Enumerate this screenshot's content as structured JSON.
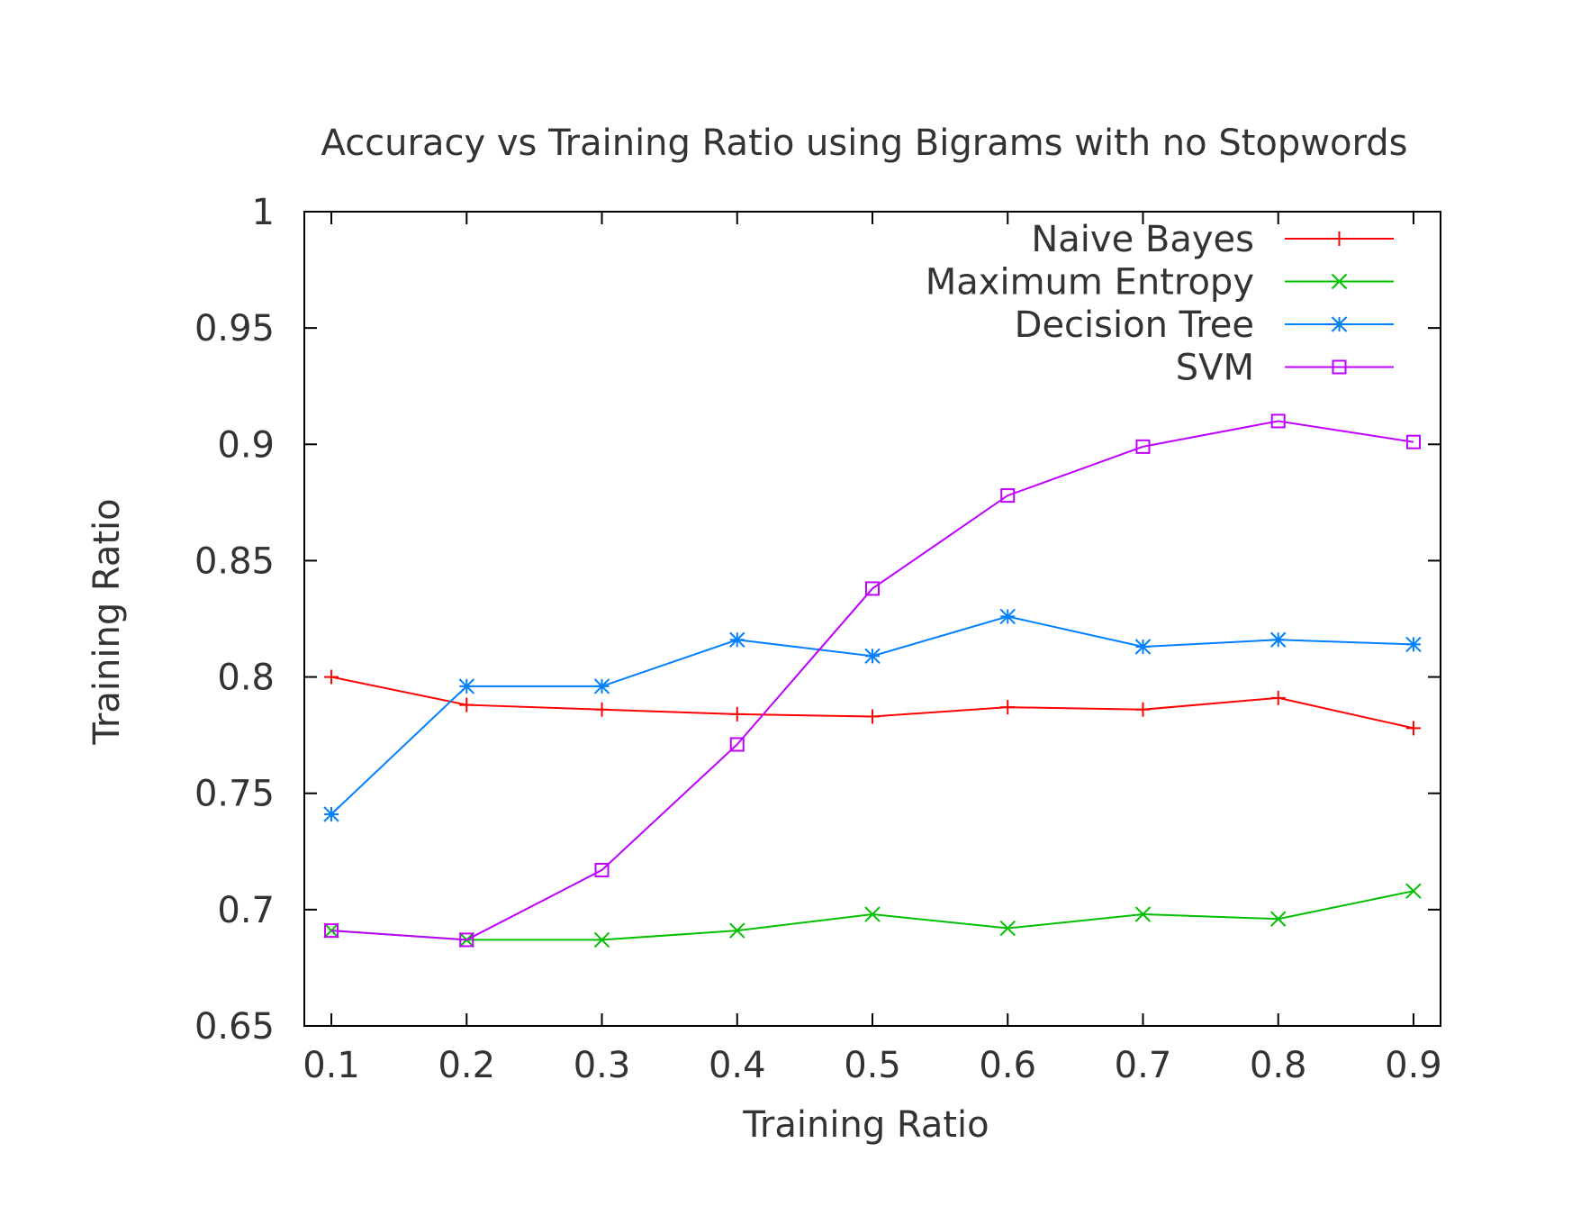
{
  "chart_data": {
    "type": "line",
    "title": "Accuracy vs Training Ratio using Bigrams with no Stopwords",
    "xlabel": "Training Ratio",
    "ylabel": "Training Ratio",
    "x": [
      0.1,
      0.2,
      0.3,
      0.4,
      0.5,
      0.6,
      0.7,
      0.8,
      0.9
    ],
    "xlim": [
      0.08,
      0.92
    ],
    "ylim": [
      0.65,
      1
    ],
    "xticks": [
      "0.1",
      "0.2",
      "0.3",
      "0.4",
      "0.5",
      "0.6",
      "0.7",
      "0.8",
      "0.9"
    ],
    "yticks": [
      "0.65",
      "0.7",
      "0.75",
      "0.8",
      "0.85",
      "0.9",
      "0.95",
      "1"
    ],
    "grid": false,
    "legend_position": "top-right",
    "series": [
      {
        "name": "Naive Bayes",
        "color": "#ff0000",
        "marker": "plus",
        "values": [
          0.8,
          0.788,
          0.786,
          0.784,
          0.783,
          0.787,
          0.786,
          0.791,
          0.778
        ]
      },
      {
        "name": "Maximum Entropy",
        "color": "#00c000",
        "marker": "cross",
        "values": [
          0.691,
          0.687,
          0.687,
          0.691,
          0.698,
          0.692,
          0.698,
          0.696,
          0.708
        ]
      },
      {
        "name": "Decision Tree",
        "color": "#0080ff",
        "marker": "star",
        "values": [
          0.741,
          0.796,
          0.796,
          0.816,
          0.809,
          0.826,
          0.813,
          0.816,
          0.814
        ]
      },
      {
        "name": "SVM",
        "color": "#c000ff",
        "marker": "square",
        "values": [
          0.691,
          0.687,
          0.717,
          0.771,
          0.838,
          0.878,
          0.899,
          0.91,
          0.901
        ]
      }
    ]
  }
}
